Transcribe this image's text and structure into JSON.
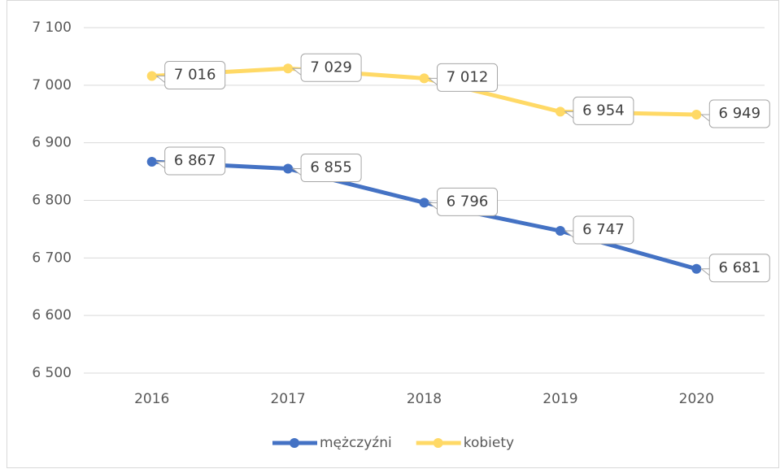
{
  "chart_data": {
    "type": "line",
    "categories": [
      "2016",
      "2017",
      "2018",
      "2019",
      "2020"
    ],
    "series": [
      {
        "name": "mężczyźni",
        "color": "#4472c4",
        "values": [
          6867,
          6855,
          6796,
          6747,
          6681
        ],
        "value_labels": [
          "6 867",
          "6 855",
          "6 796",
          "6 747",
          "6 681"
        ]
      },
      {
        "name": "kobiety",
        "color": "#ffd966",
        "values": [
          7016,
          7029,
          7012,
          6954,
          6949
        ],
        "value_labels": [
          "7 016",
          "7 029",
          "7 012",
          "6 954",
          "6 949"
        ]
      }
    ],
    "ylim": [
      6500,
      7100
    ],
    "yticks": [
      {
        "value": 6500,
        "label": "6 500"
      },
      {
        "value": 6600,
        "label": "6 600"
      },
      {
        "value": 6700,
        "label": "6 700"
      },
      {
        "value": 6800,
        "label": "6 800"
      },
      {
        "value": 6900,
        "label": "6 900"
      },
      {
        "value": 7000,
        "label": "7 000"
      },
      {
        "value": 7100,
        "label": "7 100"
      }
    ],
    "grid": true,
    "legend": "bottom"
  }
}
